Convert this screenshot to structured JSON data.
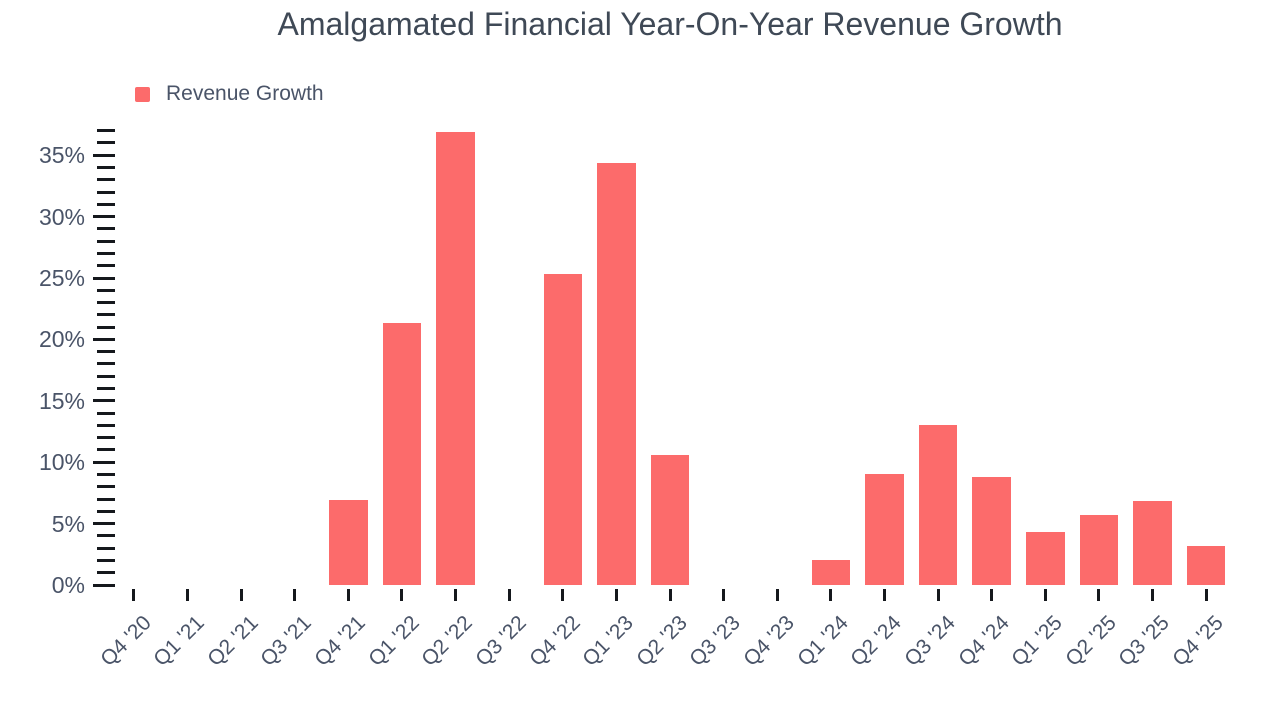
{
  "chart_data": {
    "type": "bar",
    "title": "Amalgamated Financial Year-On-Year Revenue Growth",
    "legend": [
      {
        "name": "Revenue Growth",
        "color": "#FC6B6B"
      }
    ],
    "legend_position": "top-left",
    "categories": [
      "Q4 '20",
      "Q1 '21",
      "Q2 '21",
      "Q3 '21",
      "Q4 '21",
      "Q1 '22",
      "Q2 '22",
      "Q3 '22",
      "Q4 '22",
      "Q1 '23",
      "Q2 '23",
      "Q3 '23",
      "Q4 '23",
      "Q1 '24",
      "Q2 '24",
      "Q3 '24",
      "Q4 '24",
      "Q1 '25",
      "Q2 '25",
      "Q3 '25",
      "Q4 '25"
    ],
    "values": [
      null,
      null,
      null,
      null,
      6.9,
      21.3,
      36.9,
      null,
      25.3,
      34.4,
      10.6,
      null,
      null,
      2.0,
      9.0,
      13.0,
      8.8,
      4.3,
      5.7,
      6.8,
      3.2
    ],
    "xlabel": "",
    "ylabel": "",
    "ylim": [
      0,
      37
    ],
    "y_major_step": 5,
    "y_minor_step": 1,
    "y_label_max": 35,
    "y_tick_format": "percent",
    "grid": false
  },
  "colors": {
    "bar": "#FC6B6B",
    "title_text": "#3F4956",
    "axis_text": "#4A5468",
    "tick": "#15181D",
    "background": "#FFFFFF"
  }
}
